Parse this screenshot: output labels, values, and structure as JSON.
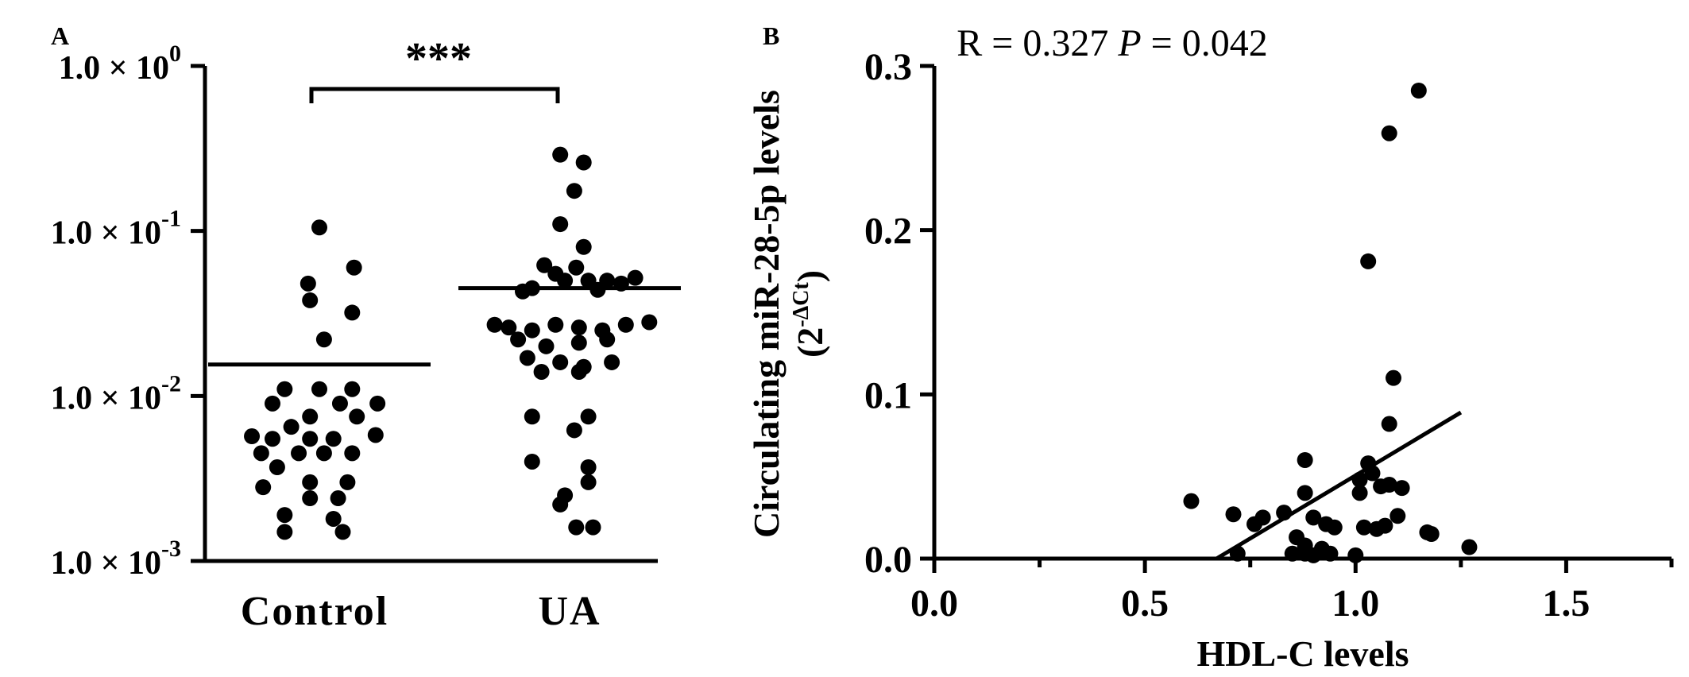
{
  "panels": {
    "a_label": "A",
    "b_label": "B"
  },
  "chart_data": [
    {
      "type": "scatter",
      "subtype": "dot-plot",
      "yscale": "log",
      "ylim": [
        0.001,
        1.0
      ],
      "yticks": [
        {
          "value": 1.0,
          "base": "1.0 × 10",
          "exp": "0"
        },
        {
          "value": 0.1,
          "base": "1.0 × 10",
          "exp": "-1"
        },
        {
          "value": 0.01,
          "base": "1.0 × 10",
          "exp": "-2"
        },
        {
          "value": 0.001,
          "base": "1.0 × 10",
          "exp": "-3"
        }
      ],
      "categories": [
        "Control",
        "UA"
      ],
      "significance": "***",
      "series": [
        {
          "category": "Control",
          "mean": 0.0155,
          "points": [
            {
              "off": 0.0,
              "y": 0.105
            },
            {
              "off": 0.37,
              "y": 0.06
            },
            {
              "off": -0.12,
              "y": 0.048
            },
            {
              "off": -0.1,
              "y": 0.038
            },
            {
              "off": 0.35,
              "y": 0.032
            },
            {
              "off": 0.05,
              "y": 0.022
            },
            {
              "off": -0.37,
              "y": 0.011
            },
            {
              "off": 0.0,
              "y": 0.011
            },
            {
              "off": 0.35,
              "y": 0.011
            },
            {
              "off": -0.5,
              "y": 0.009
            },
            {
              "off": 0.22,
              "y": 0.009
            },
            {
              "off": 0.62,
              "y": 0.009
            },
            {
              "off": -0.1,
              "y": 0.0075
            },
            {
              "off": 0.4,
              "y": 0.0075
            },
            {
              "off": -0.3,
              "y": 0.0065
            },
            {
              "off": -0.72,
              "y": 0.0057
            },
            {
              "off": -0.5,
              "y": 0.0055
            },
            {
              "off": -0.1,
              "y": 0.0055
            },
            {
              "off": 0.15,
              "y": 0.0055
            },
            {
              "off": 0.6,
              "y": 0.0058
            },
            {
              "off": -0.62,
              "y": 0.0045
            },
            {
              "off": -0.22,
              "y": 0.0045
            },
            {
              "off": 0.05,
              "y": 0.0045
            },
            {
              "off": 0.35,
              "y": 0.0045
            },
            {
              "off": -0.45,
              "y": 0.0037
            },
            {
              "off": -0.1,
              "y": 0.003
            },
            {
              "off": 0.3,
              "y": 0.003
            },
            {
              "off": -0.6,
              "y": 0.0028
            },
            {
              "off": -0.1,
              "y": 0.0024
            },
            {
              "off": 0.2,
              "y": 0.0024
            },
            {
              "off": -0.37,
              "y": 0.0019
            },
            {
              "off": 0.15,
              "y": 0.0018
            },
            {
              "off": -0.37,
              "y": 0.0015
            },
            {
              "off": 0.25,
              "y": 0.0015
            }
          ]
        },
        {
          "category": "UA",
          "mean": 0.045,
          "points": [
            {
              "off": -0.1,
              "y": 0.29
            },
            {
              "off": 0.15,
              "y": 0.26
            },
            {
              "off": 0.05,
              "y": 0.175
            },
            {
              "off": -0.1,
              "y": 0.11
            },
            {
              "off": 0.15,
              "y": 0.08
            },
            {
              "off": -0.27,
              "y": 0.062
            },
            {
              "off": 0.07,
              "y": 0.06
            },
            {
              "off": -0.15,
              "y": 0.055
            },
            {
              "off": 0.2,
              "y": 0.05
            },
            {
              "off": -0.05,
              "y": 0.05
            },
            {
              "off": 0.4,
              "y": 0.05
            },
            {
              "off": 0.7,
              "y": 0.052
            },
            {
              "off": -0.4,
              "y": 0.045
            },
            {
              "off": -0.5,
              "y": 0.043
            },
            {
              "off": 0.3,
              "y": 0.044
            },
            {
              "off": 0.55,
              "y": 0.048
            },
            {
              "off": -0.8,
              "y": 0.027
            },
            {
              "off": -0.65,
              "y": 0.026
            },
            {
              "off": -0.4,
              "y": 0.025
            },
            {
              "off": -0.15,
              "y": 0.027
            },
            {
              "off": 0.1,
              "y": 0.026
            },
            {
              "off": 0.35,
              "y": 0.025
            },
            {
              "off": 0.6,
              "y": 0.027
            },
            {
              "off": 0.85,
              "y": 0.028
            },
            {
              "off": -0.55,
              "y": 0.022
            },
            {
              "off": -0.25,
              "y": 0.02
            },
            {
              "off": 0.1,
              "y": 0.021
            },
            {
              "off": 0.4,
              "y": 0.022
            },
            {
              "off": -0.45,
              "y": 0.017
            },
            {
              "off": -0.1,
              "y": 0.016
            },
            {
              "off": 0.15,
              "y": 0.015
            },
            {
              "off": 0.45,
              "y": 0.016
            },
            {
              "off": -0.3,
              "y": 0.014
            },
            {
              "off": 0.1,
              "y": 0.014
            },
            {
              "off": -0.4,
              "y": 0.0075
            },
            {
              "off": 0.2,
              "y": 0.0075
            },
            {
              "off": 0.05,
              "y": 0.0062
            },
            {
              "off": -0.4,
              "y": 0.004
            },
            {
              "off": 0.2,
              "y": 0.0037
            },
            {
              "off": -0.05,
              "y": 0.0025
            },
            {
              "off": 0.2,
              "y": 0.003
            },
            {
              "off": -0.1,
              "y": 0.0022
            },
            {
              "off": 0.07,
              "y": 0.0016
            },
            {
              "off": 0.25,
              "y": 0.0016
            }
          ]
        }
      ]
    },
    {
      "type": "scatter",
      "stat_text": "R = 0.327 ",
      "stat_p_label": "P",
      "stat_p_value": " = 0.042",
      "xlabel": "HDL-C levels",
      "ylabel_line1": "Circulating miR-28-5p levels",
      "ylabel_line2_pre": "(2",
      "ylabel_line2_sup": "-ΔCt",
      "ylabel_line2_post": ")",
      "xlim": [
        0.0,
        1.75
      ],
      "ylim": [
        0.0,
        0.3
      ],
      "xticks": [
        {
          "value": 0.0,
          "label": "0.0"
        },
        {
          "value": 0.5,
          "label": "0.5"
        },
        {
          "value": 1.0,
          "label": "1.0"
        },
        {
          "value": 1.5,
          "label": "1.5"
        }
      ],
      "xminor": [
        0.25,
        0.75,
        1.25,
        1.75
      ],
      "yticks": [
        {
          "value": 0.0,
          "label": "0.0"
        },
        {
          "value": 0.1,
          "label": "0.1"
        },
        {
          "value": 0.2,
          "label": "0.2"
        },
        {
          "value": 0.3,
          "label": "0.3"
        }
      ],
      "regression": {
        "x1": 0.67,
        "y1": 0.0,
        "x2": 1.25,
        "y2": 0.089
      },
      "points": [
        [
          1.15,
          0.285
        ],
        [
          1.08,
          0.259
        ],
        [
          1.03,
          0.181
        ],
        [
          1.09,
          0.11
        ],
        [
          1.08,
          0.082
        ],
        [
          0.88,
          0.06
        ],
        [
          1.03,
          0.058
        ],
        [
          1.04,
          0.052
        ],
        [
          1.01,
          0.048
        ],
        [
          1.06,
          0.044
        ],
        [
          1.08,
          0.045
        ],
        [
          1.11,
          0.043
        ],
        [
          0.88,
          0.04
        ],
        [
          1.01,
          0.04
        ],
        [
          0.61,
          0.035
        ],
        [
          0.71,
          0.027
        ],
        [
          0.78,
          0.025
        ],
        [
          0.83,
          0.028
        ],
        [
          0.76,
          0.021
        ],
        [
          0.93,
          0.021
        ],
        [
          1.02,
          0.019
        ],
        [
          1.05,
          0.018
        ],
        [
          1.07,
          0.02
        ],
        [
          0.9,
          0.025
        ],
        [
          1.1,
          0.026
        ],
        [
          0.95,
          0.019
        ],
        [
          1.17,
          0.016
        ],
        [
          1.18,
          0.015
        ],
        [
          0.86,
          0.013
        ],
        [
          0.88,
          0.008
        ],
        [
          0.92,
          0.006
        ],
        [
          1.27,
          0.007
        ],
        [
          0.72,
          0.003
        ],
        [
          0.85,
          0.003
        ],
        [
          0.88,
          0.003
        ],
        [
          0.9,
          0.002
        ],
        [
          0.94,
          0.003
        ],
        [
          1.0,
          0.002
        ]
      ]
    }
  ]
}
